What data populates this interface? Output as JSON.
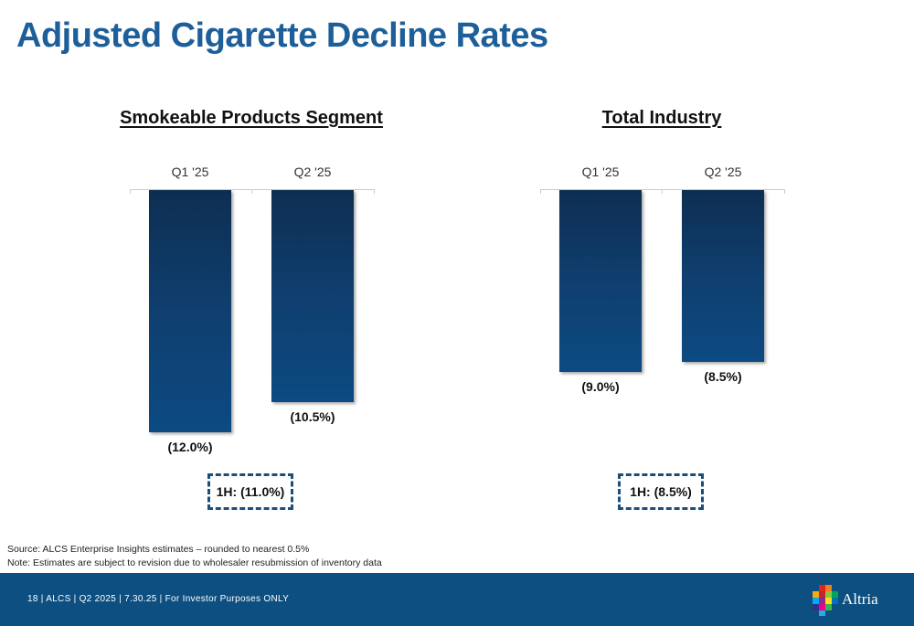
{
  "page": {
    "title": "Adjusted Cigarette Decline Rates"
  },
  "chart_data": [
    {
      "type": "bar",
      "title": "Smokeable Products Segment",
      "categories": [
        "Q1 '25",
        "Q2 '25"
      ],
      "values": [
        -12.0,
        -10.5
      ],
      "value_labels": [
        "(12.0%)",
        "(10.5%)"
      ],
      "ylim": [
        -12.0,
        0
      ],
      "summary": "1H: (11.0%)",
      "bar_color": "#0f3f6f"
    },
    {
      "type": "bar",
      "title": "Total Industry",
      "categories": [
        "Q1 '25",
        "Q2 '25"
      ],
      "values": [
        -9.0,
        -8.5
      ],
      "value_labels": [
        "(9.0%)",
        "(8.5%)"
      ],
      "ylim": [
        -12.0,
        0
      ],
      "summary": "1H: (8.5%)",
      "bar_color": "#0f3f6f"
    }
  ],
  "notes": {
    "source": "Source: ALCS Enterprise Insights estimates – rounded to nearest 0.5%",
    "note": "Note: Estimates are subject to revision due to wholesaler resubmission of inventory data"
  },
  "footer": {
    "text": "18 | ALCS | Q2 2025 | 7.30.25 | For Investor Purposes ONLY",
    "logo_text": "Altria",
    "background": "#0d4f80"
  }
}
